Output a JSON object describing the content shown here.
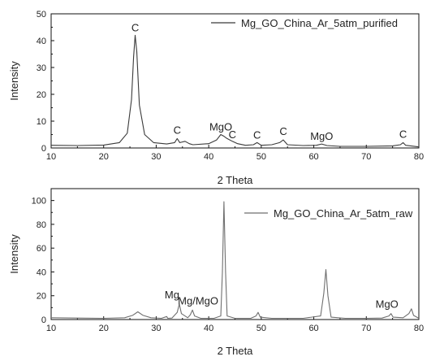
{
  "colors": {
    "purified_line": "#3a3a3a",
    "raw_line": "#6f6f6f",
    "axis": "#111111"
  },
  "chart_data": [
    {
      "type": "line",
      "xlabel": "2 Theta",
      "ylabel": "Intensity",
      "xlim": [
        10,
        80
      ],
      "ylim": [
        0,
        50
      ],
      "xticks": [
        10,
        20,
        30,
        40,
        50,
        60,
        70,
        80
      ],
      "yticks": [
        0,
        10,
        20,
        30,
        40,
        50
      ],
      "legend": "top-right",
      "grid": false,
      "series": [
        {
          "name": "Mg_GO_China_Ar_5atm_purified",
          "color_key": "purified_line",
          "x": [
            10,
            15,
            20,
            23,
            24.5,
            25.3,
            25.7,
            26.0,
            26.3,
            26.8,
            27.8,
            29.5,
            32,
            33.5,
            34.0,
            34.5,
            35.5,
            36.3,
            37,
            40,
            41.5,
            42.3,
            42.8,
            43.5,
            44.5,
            45.5,
            47,
            48.5,
            49.2,
            50,
            52,
            53.5,
            54.2,
            55,
            58,
            60.5,
            61.5,
            62.5,
            65,
            70,
            75,
            76.5,
            77.0,
            77.5,
            80
          ],
          "y": [
            1.0,
            0.9,
            1.1,
            2.0,
            5.5,
            18.0,
            34.0,
            42.0,
            36.0,
            16.0,
            5.0,
            2.0,
            1.5,
            2.0,
            3.5,
            2.0,
            2.5,
            1.6,
            1.2,
            1.6,
            3.0,
            5.0,
            4.5,
            3.5,
            2.5,
            1.6,
            1.0,
            1.2,
            2.0,
            1.0,
            1.2,
            2.0,
            3.0,
            1.2,
            0.9,
            1.0,
            1.5,
            0.9,
            0.6,
            0.6,
            0.8,
            1.2,
            2.0,
            1.0,
            0.4
          ]
        }
      ],
      "annotations": [
        {
          "text": "C",
          "x": 26,
          "y": 42
        },
        {
          "text": "C",
          "x": 34,
          "y": 3.5
        },
        {
          "text": "MgO",
          "x": 42.3,
          "y": 5.0
        },
        {
          "text": "C",
          "x": 44.5,
          "y": 2.5
        },
        {
          "text": "C",
          "x": 49.2,
          "y": 2.0
        },
        {
          "text": "C",
          "x": 54.2,
          "y": 3.0
        },
        {
          "text": "MgO",
          "x": 61.5,
          "y": 1.5
        },
        {
          "text": "C",
          "x": 77.0,
          "y": 2.0
        }
      ]
    },
    {
      "type": "line",
      "xlabel": "2 Theta",
      "ylabel": "Intensity",
      "xlim": [
        10,
        80
      ],
      "ylim": [
        0,
        110
      ],
      "xticks": [
        10,
        20,
        30,
        40,
        50,
        60,
        70,
        80
      ],
      "yticks": [
        0,
        20,
        40,
        60,
        80,
        100
      ],
      "legend": "top-right",
      "grid": false,
      "series": [
        {
          "name": "Mg_GO_China_Ar_5atm_raw",
          "color_key": "raw_line",
          "x": [
            10,
            15,
            20,
            24,
            25.5,
            26.5,
            27.5,
            29,
            31,
            32.0,
            32.2,
            33,
            34.0,
            34.4,
            34.8,
            36,
            36.5,
            36.9,
            37.3,
            38.5,
            41,
            42.3,
            42.6,
            42.9,
            43.2,
            43.5,
            45,
            48,
            49.0,
            49.4,
            49.8,
            52,
            55,
            58,
            61.3,
            61.9,
            62.3,
            62.7,
            63.3,
            66,
            70,
            73,
            74.3,
            74.7,
            75.1,
            77,
            78.1,
            78.6,
            79.0,
            80
          ],
          "y": [
            1.5,
            1.2,
            1.0,
            1.5,
            3.5,
            6.5,
            3.5,
            1.5,
            1.0,
            2.5,
            1.0,
            1.2,
            6.0,
            13.0,
            5.0,
            1.5,
            4.0,
            8.0,
            3.0,
            1.0,
            1.0,
            3.0,
            40.0,
            99.0,
            40.0,
            3.0,
            1.0,
            1.0,
            3.0,
            6.0,
            2.0,
            1.0,
            1.0,
            1.0,
            3.0,
            22.0,
            42.0,
            20.0,
            2.0,
            1.0,
            1.0,
            1.2,
            3.0,
            5.0,
            2.0,
            1.5,
            5.0,
            9.0,
            3.5,
            1.0
          ]
        }
      ],
      "annotations": [
        {
          "text": "Mg",
          "x": 34.4,
          "y": 13.0
        },
        {
          "text": "Mg/MgO",
          "x": 36.9,
          "y": 8.0
        },
        {
          "text": "MgO",
          "x": 74.7,
          "y": 5.0
        }
      ]
    }
  ]
}
